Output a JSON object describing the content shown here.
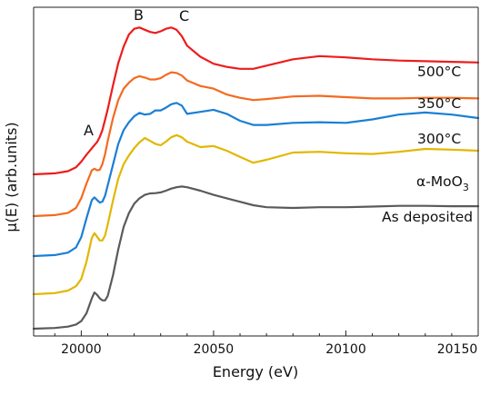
{
  "chart_data": {
    "type": "line",
    "title": "",
    "xlabel": "Energy (eV)",
    "ylabel": "μ(E) (arb.units)",
    "xlim": [
      19982,
      20150
    ],
    "x_ticks": [
      20000,
      20050,
      20100,
      20150
    ],
    "y_tick_labels": "none",
    "grid": false,
    "legend": "labels placed next to curves",
    "x": [
      19982,
      19990,
      19995,
      19998,
      20000,
      20002,
      20004,
      20005,
      20006,
      20007,
      20008,
      20009,
      20010,
      20012,
      20014,
      20016,
      20018,
      20020,
      20022,
      20024,
      20026,
      20028,
      20030,
      20032,
      20034,
      20036,
      20038,
      20040,
      20045,
      20050,
      20055,
      20060,
      20065,
      20070,
      20080,
      20090,
      20100,
      20110,
      20120,
      20130,
      20140,
      20150
    ],
    "series": [
      {
        "name": "As deposited",
        "color": "#5a5a5a",
        "values": [
          0.0,
          0.02,
          0.06,
          0.12,
          0.22,
          0.45,
          0.88,
          1.05,
          0.98,
          0.88,
          0.82,
          0.82,
          0.95,
          1.55,
          2.3,
          2.95,
          3.35,
          3.62,
          3.78,
          3.88,
          3.92,
          3.93,
          3.95,
          4.0,
          4.06,
          4.1,
          4.12,
          4.1,
          4.0,
          3.88,
          3.78,
          3.68,
          3.58,
          3.52,
          3.5,
          3.52,
          3.52,
          3.54,
          3.56,
          3.56,
          3.55,
          3.55
        ]
      },
      {
        "name": "α-MoO3",
        "color": "#e2b700",
        "values": [
          0.0,
          0.03,
          0.1,
          0.22,
          0.42,
          0.9,
          1.55,
          1.68,
          1.58,
          1.48,
          1.48,
          1.62,
          1.92,
          2.58,
          3.18,
          3.58,
          3.82,
          4.02,
          4.18,
          4.3,
          4.22,
          4.14,
          4.1,
          4.2,
          4.32,
          4.38,
          4.32,
          4.2,
          4.05,
          4.08,
          3.95,
          3.78,
          3.62,
          3.7,
          3.9,
          3.92,
          3.88,
          3.86,
          3.92,
          4.0,
          3.98,
          3.95
        ]
      },
      {
        "name": "300°C",
        "color": "#1a7fd4",
        "values": [
          0.0,
          0.03,
          0.1,
          0.25,
          0.55,
          1.1,
          1.62,
          1.7,
          1.62,
          1.55,
          1.58,
          1.75,
          2.05,
          2.65,
          3.25,
          3.65,
          3.88,
          4.05,
          4.15,
          4.1,
          4.12,
          4.22,
          4.22,
          4.3,
          4.4,
          4.44,
          4.36,
          4.12,
          4.18,
          4.24,
          4.12,
          3.92,
          3.8,
          3.8,
          3.86,
          3.88,
          3.86,
          3.96,
          4.1,
          4.16,
          4.1,
          4.0
        ]
      },
      {
        "name": "350°C",
        "color": "#f46a1f",
        "values": [
          0.0,
          0.03,
          0.1,
          0.25,
          0.55,
          1.0,
          1.4,
          1.45,
          1.4,
          1.42,
          1.6,
          1.9,
          2.3,
          3.0,
          3.55,
          3.9,
          4.08,
          4.22,
          4.28,
          4.24,
          4.18,
          4.18,
          4.22,
          4.32,
          4.4,
          4.38,
          4.3,
          4.15,
          3.98,
          3.9,
          3.72,
          3.62,
          3.55,
          3.58,
          3.66,
          3.68,
          3.64,
          3.6,
          3.6,
          3.62,
          3.62,
          3.6
        ]
      },
      {
        "name": "500°C",
        "color": "#ee1c1c",
        "values": [
          0.0,
          0.03,
          0.1,
          0.22,
          0.4,
          0.62,
          0.82,
          0.92,
          1.02,
          1.18,
          1.4,
          1.72,
          2.05,
          2.8,
          3.5,
          4.02,
          4.4,
          4.58,
          4.62,
          4.55,
          4.48,
          4.45,
          4.5,
          4.58,
          4.62,
          4.55,
          4.35,
          4.05,
          3.7,
          3.48,
          3.38,
          3.32,
          3.32,
          3.42,
          3.62,
          3.72,
          3.68,
          3.62,
          3.58,
          3.56,
          3.54,
          3.52
        ]
      }
    ],
    "annotations": [
      "A",
      "B",
      "C"
    ],
    "series_labels_shown": [
      "500°C",
      "350°C",
      "300°C",
      "α-MoO",
      "As deposited"
    ],
    "subscript": "3"
  }
}
